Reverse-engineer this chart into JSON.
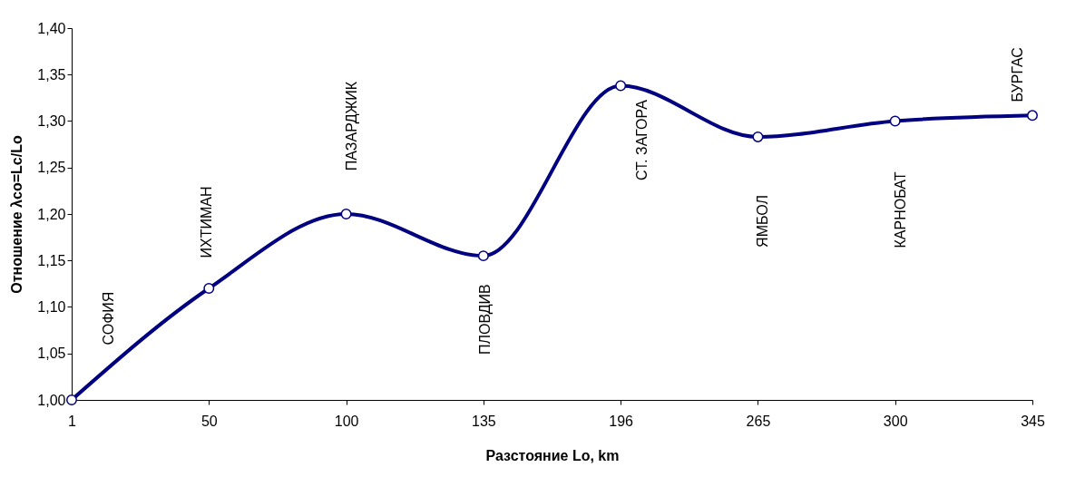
{
  "chart_data": {
    "type": "line",
    "xlabel": "Разстояние Lo, km",
    "ylabel": "Отношение λco=Lc/Lo",
    "categories": [
      "1",
      "50",
      "100",
      "135",
      "196",
      "265",
      "300",
      "345"
    ],
    "series": [
      {
        "color": "#000080",
        "values": [
          1.0,
          1.12,
          1.2,
          1.155,
          1.338,
          1.283,
          1.3,
          1.306
        ]
      }
    ],
    "ylim": [
      1.0,
      1.4
    ],
    "yticks": [
      {
        "value": 1.0,
        "label": "1,00"
      },
      {
        "value": 1.05,
        "label": "1,05"
      },
      {
        "value": 1.1,
        "label": "1,10"
      },
      {
        "value": 1.15,
        "label": "1,15"
      },
      {
        "value": 1.2,
        "label": "1,20"
      },
      {
        "value": 1.25,
        "label": "1,25"
      },
      {
        "value": 1.3,
        "label": "1,30"
      },
      {
        "value": 1.35,
        "label": "1,35"
      },
      {
        "value": 1.4,
        "label": "1,40"
      }
    ],
    "annotations": [
      "СОФИЯ",
      "ИХТИМАН",
      "ПАЗАРДЖИК",
      "ПЛОВДИВ",
      "СТ. ЗАГОРА",
      "ЯМБОЛ",
      "КАРНОБАТ",
      "БУРГАС"
    ],
    "marker": "circle",
    "line_style": "solid",
    "grid": false
  }
}
